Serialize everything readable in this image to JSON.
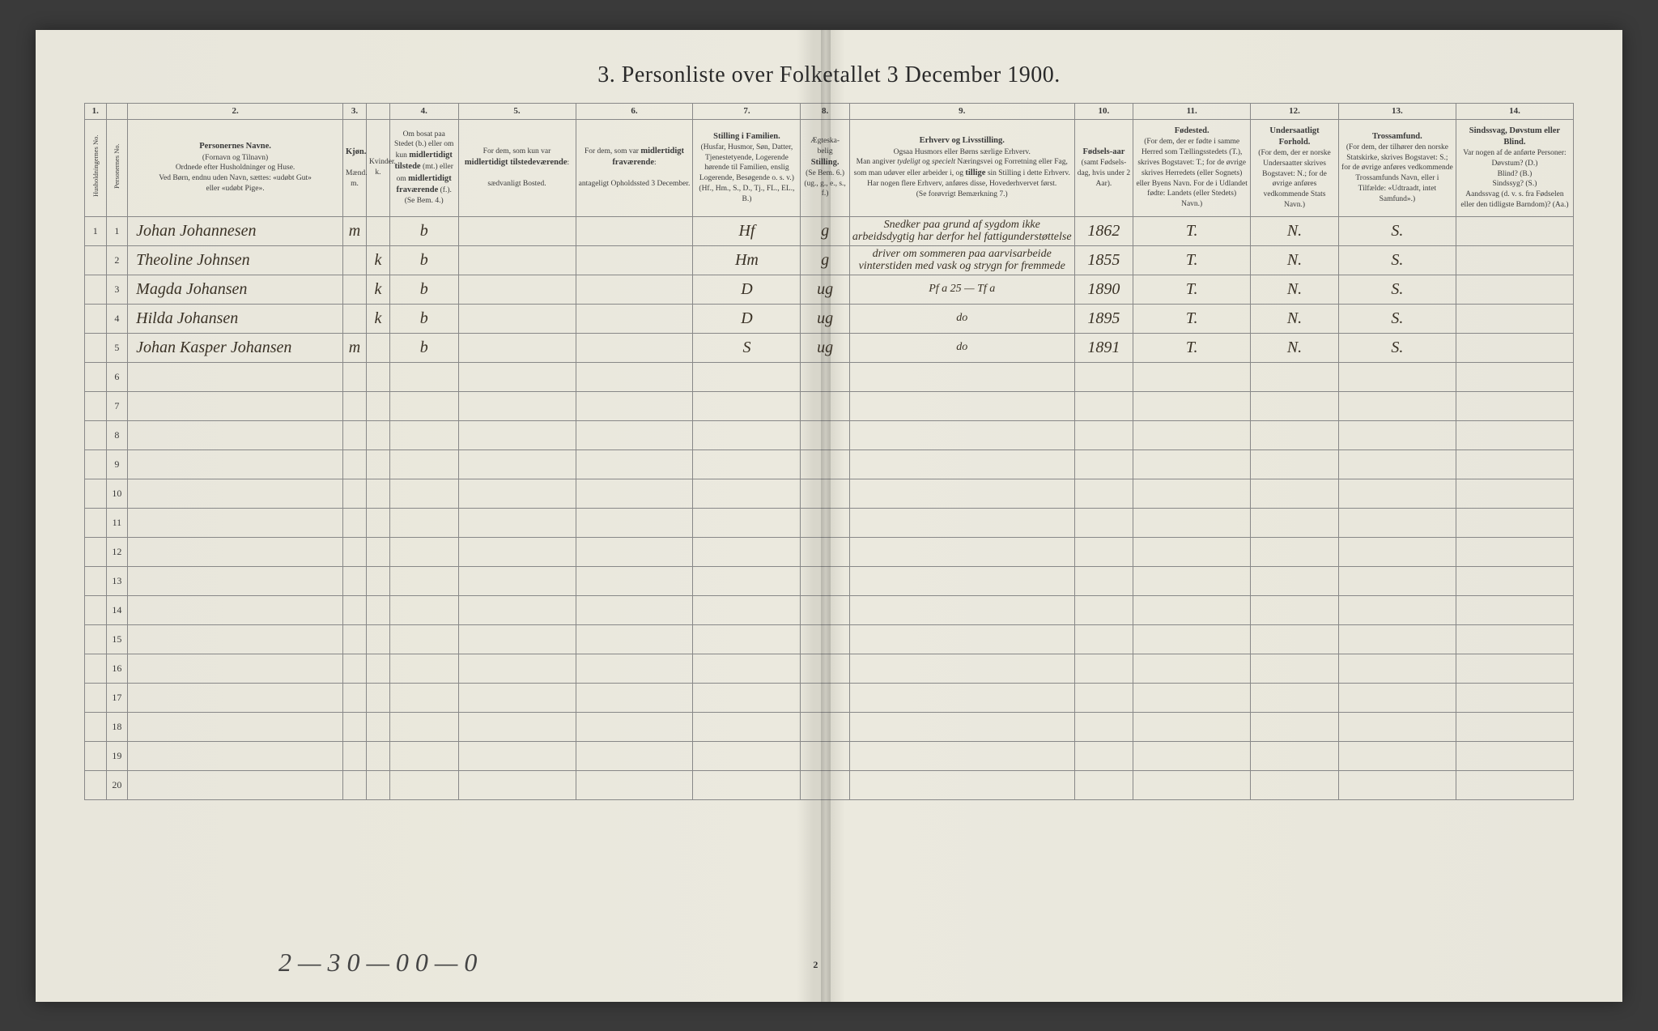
{
  "title": "3. Personliste over Folketallet 3 December 1900.",
  "columns": {
    "numbers": [
      "1.",
      "",
      "2.",
      "3.",
      "",
      "4.",
      "5.",
      "6.",
      "7.",
      "8.",
      "9.",
      "10.",
      "11.",
      "12.",
      "13.",
      "14."
    ],
    "headers": [
      "Husholdningernes No.",
      "Personernes No.",
      "<b>Personernes Navne.</b><br>(Fornavn og Tilnavn)<br>Ordnede efter Husholdninger og Huse.<br>Ved Børn, endnu uden Navn, sættes: «udøbt Gut»<br>eller «udøbt Pige».",
      "<b>Kjøn.</b><br><br>Mænd.<br>m.",
      "Kvinder.<br>k.",
      "Om bosat paa Stedet (b.) eller om kun <b>midlertidigt tilstede</b> (mt.) eller om <b>midlertidigt fraværende</b> (f.).<br>(Se Bem. 4.)",
      "For dem, som kun var <b>midlertidigt tilstedeværende</b>:<br><br>sædvanligt Bosted.",
      "For dem, som var <b>midlertidigt fraværende</b>:<br><br>antageligt Opholdssted 3 December.",
      "<b>Stilling i Familien.</b><br>(Husfar, Husmor, Søn, Datter, Tjenestetyende, Logerende hørende til Familien, enslig Logerende, Besøgende o. s. v.)<br>(Hf., Hm., S., D., Tj., FL., EL., B.)",
      "Ægteska-belig <b>Stilling.</b><br>(Se Bem. 6.)<br>(ug., g., e., s., f.)",
      "<b>Erhverv og Livsstilling.</b><br>Ogsaa Husmors eller Børns særlige Erhverv.<br>Man angiver <i>tydeligt</i> og <i>specielt</i> Næringsvei og Forretning eller Fag, som man udøver eller arbeider i, og <b>tillige</b> sin Stilling i dette Erhverv.<br>Har nogen flere Erhverv, anføres disse, Hovederhvervet først.<br>(Se forøvrigt Bemærkning 7.)",
      "<b>Fødsels-aar</b><br>(samt Fødsels-dag, hvis under 2 Aar).",
      "<b>Fødested.</b><br>(For dem, der er fødte i samme Herred som Tællingsstedets (T.), skrives Bogstavet: T.; for de øvrige skrives Herredets (eller Sognets) eller Byens Navn. For de i Udlandet fødte: Landets (eller Stedets) Navn.)",
      "<b>Undersaatligt Forhold.</b><br>(For dem, der er norske Undersaatter skrives Bogstavet: N.; for de øvrige anføres vedkommende Stats Navn.)",
      "<b>Trossamfund.</b><br>(For dem, der tilhører den norske Statskirke, skrives Bogstavet: S.; for de øvrige anføres vedkommende Trossamfunds Navn, eller i Tilfælde: «Udtraadt, intet Samfund».)",
      "<b>Sindssvag, Døvstum eller Blind.</b><br>Var nogen af de anførte Personer:<br>Døvstum? (D.)<br>Blind? (B.)<br>Sindssyg? (S.)<br>Aandssvag (d. v. s. fra Fødselen eller den tidligste Barndom)? (Aa.)"
    ],
    "widths": [
      22,
      22,
      220,
      24,
      24,
      70,
      120,
      120,
      110,
      50,
      230,
      60,
      120,
      90,
      120,
      120
    ]
  },
  "rows": [
    {
      "h": "1",
      "p": "1",
      "name": "Johan Johannesen",
      "m": "m",
      "k": "",
      "res": "b",
      "mt": "",
      "fr": "",
      "fam": "Hf",
      "civ": "g",
      "occ": "Snedker paa grund af sygdom ikke arbeidsdygtig har derfor hel fattigunderstøttelse",
      "year": "1862",
      "birth": "T.",
      "nat": "N.",
      "rel": "S.",
      "dis": ""
    },
    {
      "h": "",
      "p": "2",
      "name": "Theoline Johnsen",
      "m": "",
      "k": "k",
      "res": "b",
      "mt": "",
      "fr": "",
      "fam": "Hm",
      "civ": "g",
      "occ": "driver om sommeren paa aarvisarbeide vinterstiden med vask og strygn for fremmede",
      "year": "1855",
      "birth": "T.",
      "nat": "N.",
      "rel": "S.",
      "dis": ""
    },
    {
      "h": "",
      "p": "3",
      "name": "Magda Johansen",
      "m": "",
      "k": "k",
      "res": "b",
      "mt": "",
      "fr": "",
      "fam": "D",
      "civ": "ug",
      "occ": "Pf a 25 — Tf a",
      "year": "1890",
      "birth": "T.",
      "nat": "N.",
      "rel": "S.",
      "dis": ""
    },
    {
      "h": "",
      "p": "4",
      "name": "Hilda Johansen",
      "m": "",
      "k": "k",
      "res": "b",
      "mt": "",
      "fr": "",
      "fam": "D",
      "civ": "ug",
      "occ": "do",
      "year": "1895",
      "birth": "T.",
      "nat": "N.",
      "rel": "S.",
      "dis": ""
    },
    {
      "h": "",
      "p": "5",
      "name": "Johan Kasper Johansen",
      "m": "m",
      "k": "",
      "res": "b",
      "mt": "",
      "fr": "",
      "fam": "S",
      "civ": "ug",
      "occ": "do",
      "year": "1891",
      "birth": "T.",
      "nat": "N.",
      "rel": "S.",
      "dis": ""
    }
  ],
  "empty_rows": 15,
  "footer_note": "2 — 3   0 — 0 0 — 0",
  "page_number": "2",
  "colors": {
    "paper": "#e8e6db",
    "border": "#888888",
    "ink_print": "#2a2a2a",
    "ink_hand": "#3a3226"
  }
}
